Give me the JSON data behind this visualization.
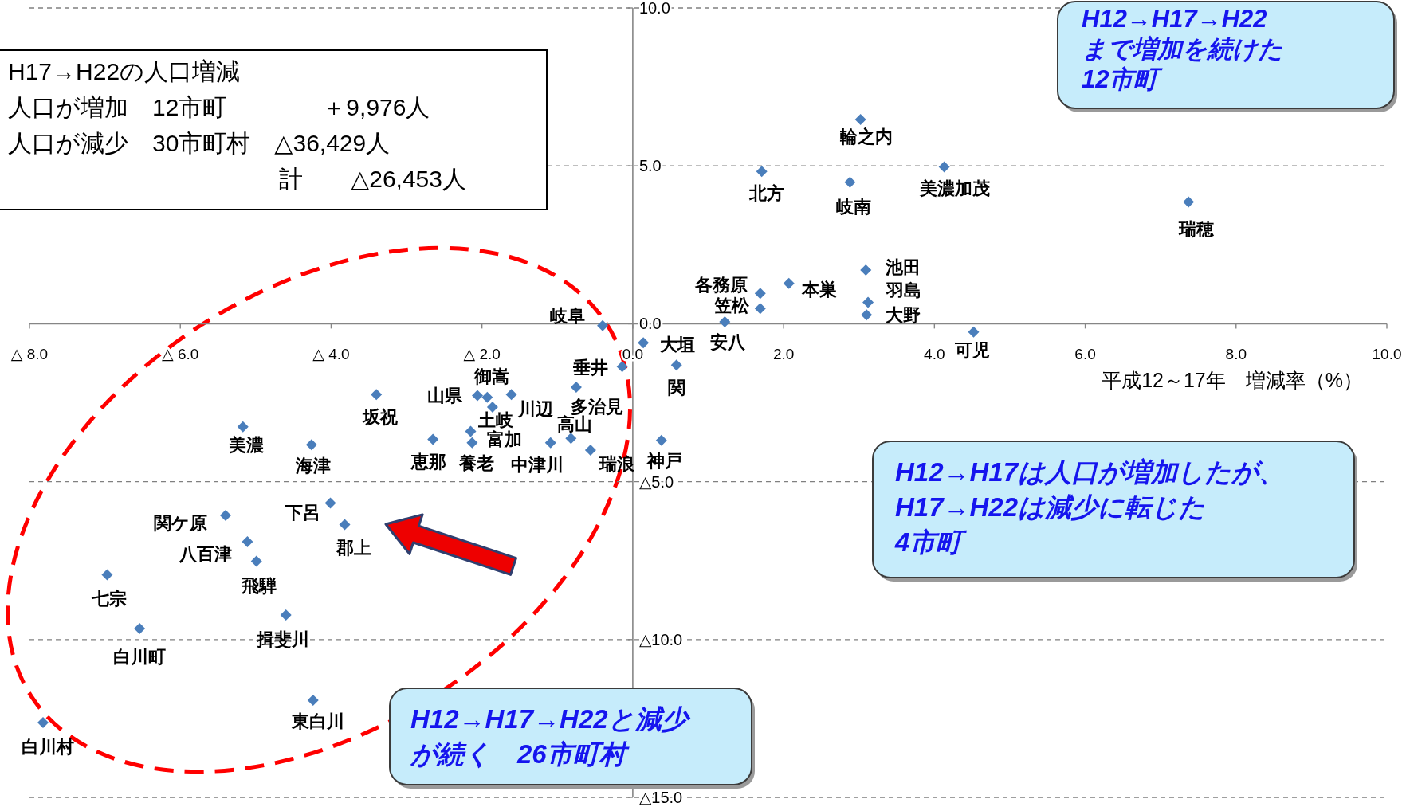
{
  "chart_data": {
    "type": "scatter",
    "xlabel": "平成12～17年　増減率（%）",
    "x": [
      3.02,
      1.71,
      2.88,
      4.13,
      7.37,
      3.09,
      1.69,
      2.07,
      3.12,
      1.69,
      3.1,
      1.22,
      -0.4,
      4.52,
      0.14,
      0.58,
      -0.14,
      -0.75,
      -1.93,
      -2.06,
      -1.61,
      -1.86,
      -3.4,
      -5.17,
      -4.26,
      -2.65,
      -2.15,
      -2.13,
      -1.09,
      -0.82,
      -0.56,
      0.38,
      -4.01,
      -3.82,
      -5.4,
      -5.11,
      -4.99,
      -6.97,
      -4.6,
      -6.54,
      -4.24,
      -7.82
    ],
    "values": [
      6.47,
      4.82,
      4.48,
      4.97,
      3.86,
      1.7,
      0.96,
      1.28,
      0.68,
      0.48,
      0.28,
      0.06,
      -0.06,
      -0.26,
      -0.6,
      -1.31,
      -1.36,
      -2.01,
      -2.33,
      -2.27,
      -2.24,
      -2.64,
      -2.24,
      -3.26,
      -3.83,
      -3.66,
      -3.41,
      -3.77,
      -3.77,
      -3.63,
      -4.0,
      -3.69,
      -5.68,
      -6.36,
      -6.07,
      -6.9,
      -7.52,
      -7.95,
      -9.22,
      -9.65,
      -11.92,
      -12.63
    ],
    "color": "#4a7ebb",
    "marker": "diamond",
    "grid": "y",
    "xlim": [
      -8,
      10
    ],
    "ylim": [
      -15,
      10
    ],
    "xticks": [
      {
        "value": -8,
        "label": "△ 8.0"
      },
      {
        "value": -6,
        "label": "△ 6.0"
      },
      {
        "value": -4,
        "label": "△ 4.0"
      },
      {
        "value": -2,
        "label": "△ 2.0"
      },
      {
        "value": 0,
        "label": "0.0"
      },
      {
        "value": 2,
        "label": "2.0"
      },
      {
        "value": 4,
        "label": "4.0"
      },
      {
        "value": 6,
        "label": "6.0"
      },
      {
        "value": 8,
        "label": "8.0"
      },
      {
        "value": 10,
        "label": "10.0"
      }
    ],
    "yticks": [
      {
        "value": -15,
        "label": "△15.0"
      },
      {
        "value": -10,
        "label": "△10.0"
      },
      {
        "value": -5,
        "label": "△5.0"
      },
      {
        "value": 0,
        "label": "0.0"
      },
      {
        "value": 5,
        "label": "5.0"
      },
      {
        "value": 10,
        "label": "10.0"
      }
    ],
    "annotations": [
      {
        "text": "輪之内",
        "x": 3.02,
        "y": 6.47
      },
      {
        "text": "北方",
        "x": 1.71,
        "y": 4.82
      },
      {
        "text": "岐南",
        "x": 2.88,
        "y": 4.48
      },
      {
        "text": "美濃加茂",
        "x": 4.13,
        "y": 4.97
      },
      {
        "text": "瑞穂",
        "x": 7.37,
        "y": 3.86
      },
      {
        "text": "池田",
        "x": 3.09,
        "y": 1.7
      },
      {
        "text": "各務原",
        "x": 1.69,
        "y": 0.96
      },
      {
        "text": "本巣",
        "x": 2.07,
        "y": 1.28
      },
      {
        "text": "羽島",
        "x": 3.12,
        "y": 0.68
      },
      {
        "text": "笠松",
        "x": 1.69,
        "y": 0.48
      },
      {
        "text": "大野",
        "x": 3.1,
        "y": 0.28
      },
      {
        "text": "安八",
        "x": 1.22,
        "y": 0.06
      },
      {
        "text": "岐阜",
        "x": -0.4,
        "y": -0.06
      },
      {
        "text": "可児",
        "x": 4.52,
        "y": -0.26
      },
      {
        "text": "大垣",
        "x": 0.14,
        "y": -0.6
      },
      {
        "text": "関",
        "x": 0.58,
        "y": -1.31
      },
      {
        "text": "垂井",
        "x": -0.14,
        "y": -1.36
      },
      {
        "text": "多治見",
        "x": -0.75,
        "y": -2.01
      },
      {
        "text": "御嵩",
        "x": -1.93,
        "y": -2.33
      },
      {
        "text": "山県",
        "x": -2.06,
        "y": -2.27
      },
      {
        "text": "川辺",
        "x": -1.61,
        "y": -2.24
      },
      {
        "text": "土岐",
        "x": -1.86,
        "y": -2.64
      },
      {
        "text": "坂祝",
        "x": -3.4,
        "y": -2.24
      },
      {
        "text": "美濃",
        "x": -5.17,
        "y": -3.26
      },
      {
        "text": "海津",
        "x": -4.26,
        "y": -3.83
      },
      {
        "text": "恵那",
        "x": -2.65,
        "y": -3.66
      },
      {
        "text": "富加",
        "x": -2.15,
        "y": -3.41
      },
      {
        "text": "養老",
        "x": -2.13,
        "y": -3.77
      },
      {
        "text": "中津川",
        "x": -1.09,
        "y": -3.77
      },
      {
        "text": "高山",
        "x": -0.82,
        "y": -3.63
      },
      {
        "text": "瑞浪",
        "x": -0.56,
        "y": -4.0
      },
      {
        "text": "神戸",
        "x": 0.38,
        "y": -3.69
      },
      {
        "text": "下呂",
        "x": -4.01,
        "y": -5.68
      },
      {
        "text": "郡上",
        "x": -3.82,
        "y": -6.36
      },
      {
        "text": "関ケ原",
        "x": -5.4,
        "y": -6.07
      },
      {
        "text": "八百津",
        "x": -5.11,
        "y": -6.9
      },
      {
        "text": "飛騨",
        "x": -4.99,
        "y": -7.52
      },
      {
        "text": "七宗",
        "x": -6.97,
        "y": -7.95
      },
      {
        "text": "揖斐川",
        "x": -4.6,
        "y": -9.22
      },
      {
        "text": "白川町",
        "x": -6.54,
        "y": -9.65
      },
      {
        "text": "東白川",
        "x": -4.24,
        "y": -11.92
      },
      {
        "text": "白川村",
        "x": -7.82,
        "y": -12.63
      },
      "H17→H22の人口増減",
      "人口が増加　12市町　　　　＋9,976人",
      "人口が減少　30市町村　△36,429人",
      "計　　△26,453人",
      "H12→H17→H22まで増加を続けた12市町",
      "H12→H17は人口が増加したが、H17→H22は減少に転じた4市町",
      "H12→H17→H22と減少が続く　26市町村"
    ]
  }
}
